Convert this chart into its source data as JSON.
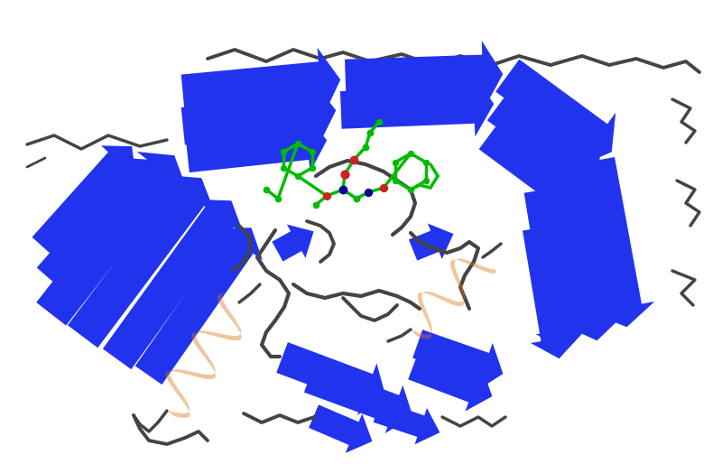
{
  "background_color": "#ffffff",
  "blue_color": "#2233ee",
  "blue_mid": "#1122cc",
  "orange_color": "#e07818",
  "gray_color": "#444444",
  "green_color": "#00bb00",
  "red_color": "#cc2222",
  "dark_blue_atom": "#000099",
  "figsize": [
    8.0,
    5.14
  ],
  "dpi": 100
}
